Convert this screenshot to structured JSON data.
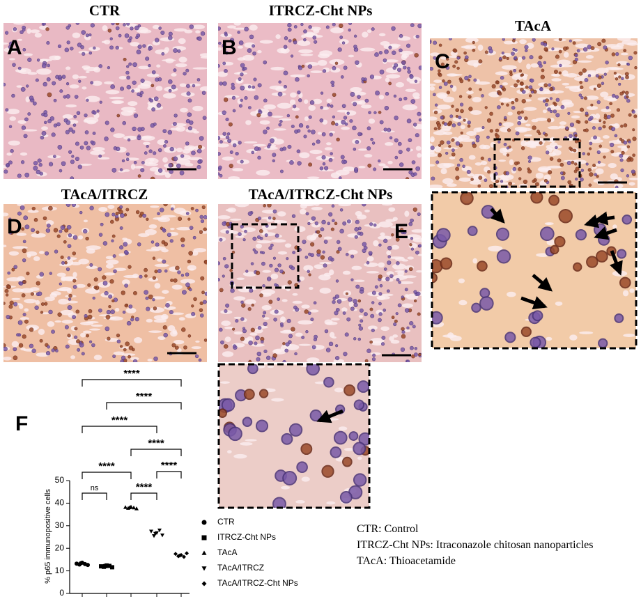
{
  "panels": [
    {
      "letter": "A",
      "title": "CTR"
    },
    {
      "letter": "B",
      "title": "ITRCZ-Cht NPs"
    },
    {
      "letter": "C",
      "title": "TAcA"
    },
    {
      "letter": "D",
      "title": "TAcA/ITRCZ"
    },
    {
      "letter": "E",
      "title": "TAcA/ITRCZ-Cht NPs"
    }
  ],
  "chart_data": {
    "type": "scatter",
    "letter": "F",
    "y_label": "% p65 immunopositive cells",
    "ylim": [
      0,
      50
    ],
    "yticks": [
      0,
      10,
      20,
      30,
      40,
      50
    ],
    "series": [
      {
        "name": "CTR",
        "marker": "circle",
        "color": "#000000",
        "values": [
          13.2,
          12.8,
          13.6,
          13.0,
          12.6,
          13.4
        ]
      },
      {
        "name": "ITRCZ-Cht NPs",
        "marker": "square",
        "color": "#000000",
        "values": [
          12.0,
          11.8,
          12.4,
          12.2,
          11.6,
          12.1
        ]
      },
      {
        "name": "TAcA",
        "marker": "triangle",
        "color": "#000000",
        "values": [
          38.2,
          37.8,
          38.4,
          38.0,
          37.6,
          38.1
        ]
      },
      {
        "name": "TAcA/ITRCZ",
        "marker": "triangle-down",
        "color": "#000000",
        "values": [
          27.5,
          25.5,
          26.8,
          28.0,
          25.8,
          26.5
        ]
      },
      {
        "name": "TAcA/ITRCZ-Cht NPs",
        "marker": "diamond",
        "color": "#000000",
        "values": [
          17.5,
          16.5,
          17.0,
          16.2,
          17.8,
          16.8
        ]
      }
    ],
    "comparisons": [
      {
        "label": "ns",
        "groups": [
          "CTR",
          "ITRCZ-Cht NPs"
        ]
      },
      {
        "label": "****",
        "groups": [
          "TAcA",
          "TAcA/ITRCZ"
        ]
      },
      {
        "label": "****",
        "groups": [
          "CTR",
          "TAcA"
        ]
      },
      {
        "label": "****",
        "groups": [
          "TAcA/ITRCZ",
          "TAcA/ITRCZ-Cht NPs"
        ]
      },
      {
        "label": "****",
        "groups": [
          "TAcA",
          "TAcA/ITRCZ-Cht NPs"
        ]
      },
      {
        "label": "****",
        "groups": [
          "CTR",
          "TAcA/ITRCZ"
        ]
      },
      {
        "label": "****",
        "groups": [
          "ITRCZ-Cht NPs",
          "TAcA/ITRCZ-Cht NPs"
        ]
      },
      {
        "label": "****",
        "groups": [
          "CTR",
          "TAcA/ITRCZ-Cht NPs"
        ]
      }
    ]
  },
  "notes": [
    "CTR: Control",
    "ITRCZ-Cht NPs: Itraconazole chitosan nanoparticles",
    "TAcA: Thioacetamide"
  ]
}
